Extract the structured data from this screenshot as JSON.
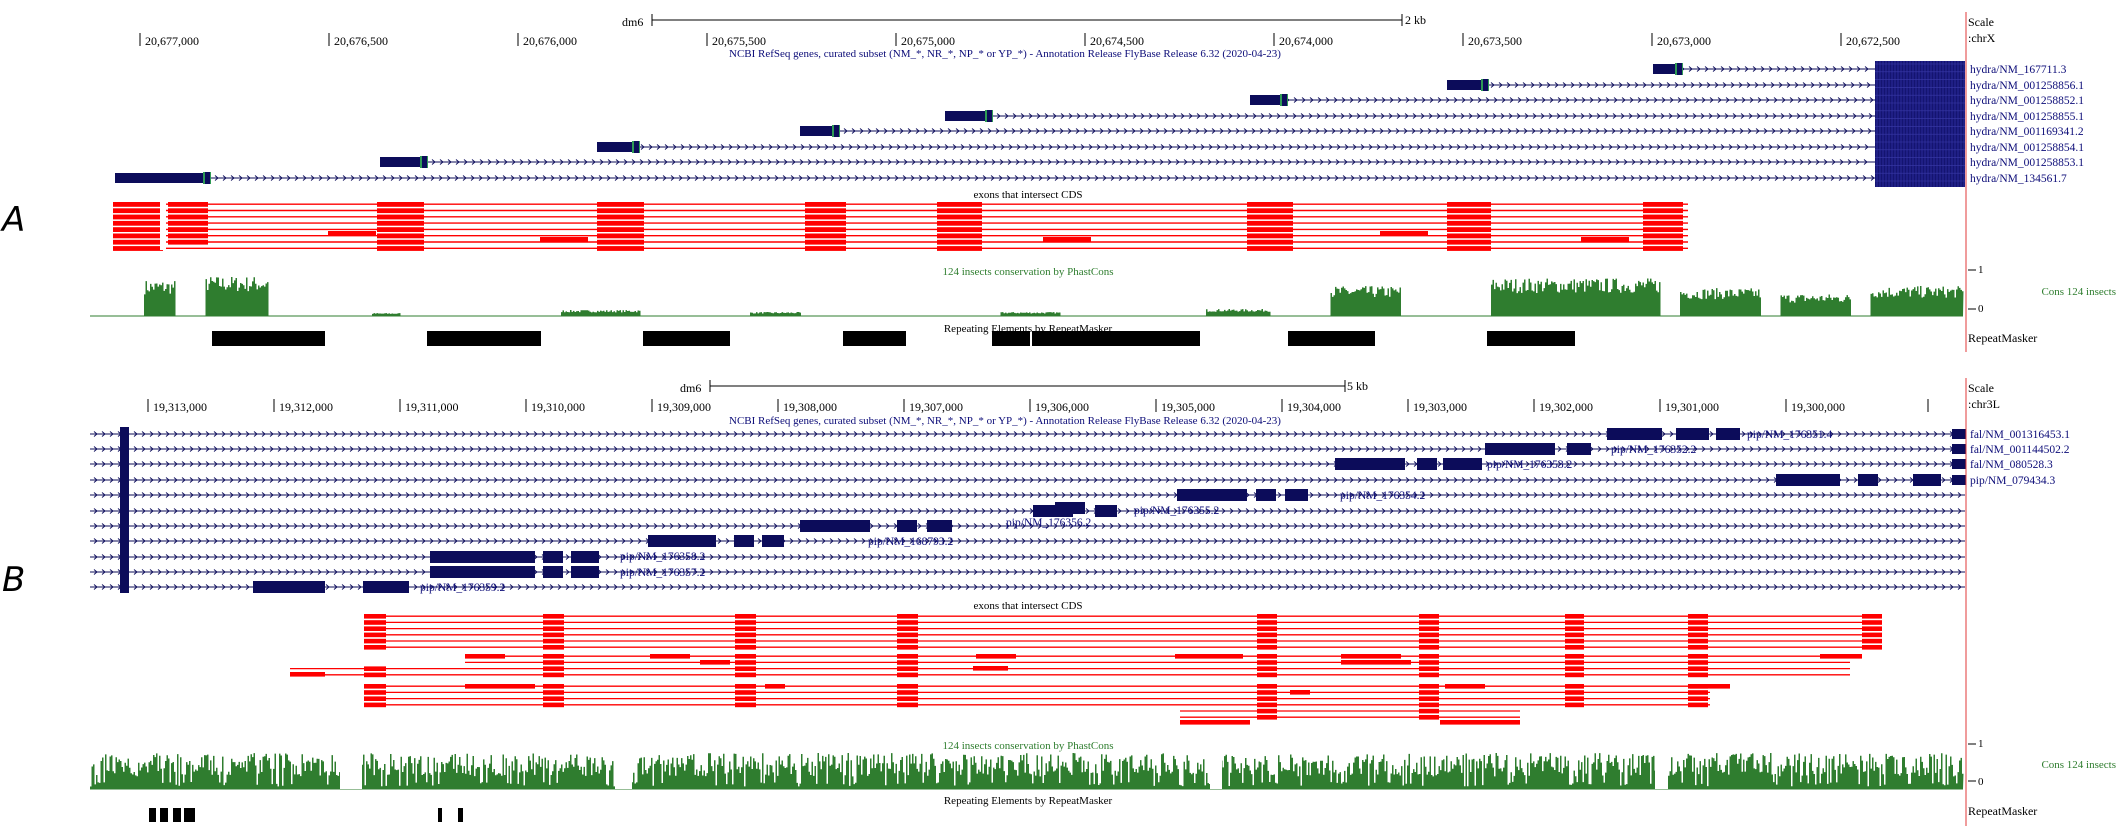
{
  "panels": [
    {
      "letter": "A",
      "assembly": "dm6",
      "scale_label": "2 kb",
      "scale_title": "Scale",
      "chrom": ":chrX",
      "coords": [
        "20,677,000",
        "20,676,500",
        "20,676,000",
        "20,675,500",
        "20,675,000",
        "20,674,500",
        "20,674,000",
        "20,673,500",
        "20,673,000",
        "20,672,500"
      ],
      "refseq_title": "NCBI RefSeq genes, curated subset (NM_*, NR_*, NP_* or YP_*) - Annotation Release FlyBase Release 6.32 (2020-04-23)",
      "transcripts": [
        "hydra/NM_167711.3",
        "hydra/NM_001258856.1",
        "hydra/NM_001258852.1",
        "hydra/NM_001258855.1",
        "hydra/NM_001169341.2",
        "hydra/NM_001258854.1",
        "hydra/NM_001258853.1",
        "hydra/NM_134561.7"
      ],
      "cds_title": "exons that intersect CDS",
      "cons_title": "124 insects conservation by PhastCons",
      "cons_label": "Cons 124 insects",
      "cons_max": "1",
      "cons_min": "0",
      "rmsk_title": "Repeating Elements by RepeatMasker",
      "rmsk_label": "RepeatMasker"
    },
    {
      "letter": "B",
      "assembly": "dm6",
      "scale_label": "5 kb",
      "scale_title": "Scale",
      "chrom": ":chr3L",
      "coords": [
        "19,313,000",
        "19,312,000",
        "19,311,000",
        "19,310,000",
        "19,309,000",
        "19,308,000",
        "19,307,000",
        "19,306,000",
        "19,305,000",
        "19,304,000",
        "19,303,000",
        "19,302,000",
        "19,301,000",
        "19,300,000"
      ],
      "refseq_title": "NCBI RefSeq genes, curated subset (NM_*, NR_*, NP_* or YP_*) - Annotation Release FlyBase Release 6.32 (2020-04-23)",
      "side_labels": [
        "fal/NM_001316453.1",
        "fal/NM_001144502.2",
        "fal/NM_080528.3",
        "pip/NM_079434.3"
      ],
      "inline_labels": [
        "pip/NM_176351.4",
        "pip/NM_176352.2",
        "pip/NM_176353.2",
        "pip/NM_176354.2",
        "pip/NM_176355.2",
        "pip/NM_176356.2",
        "pip/NM_168793.2",
        "pip/NM_176358.2",
        "pip/NM_176357.2",
        "pip/NM_176359.2"
      ],
      "cds_title": "exons that intersect CDS",
      "cons_title": "124 insects conservation by PhastCons",
      "cons_label": "Cons 124 insects",
      "cons_max": "1",
      "cons_min": "0",
      "rmsk_title": "Repeating Elements by RepeatMasker",
      "rmsk_label": "RepeatMasker"
    }
  ],
  "colors": {
    "gene": "#0c0c5a",
    "gene_label": "#0c0c78",
    "cds_exon": "#ff0000",
    "utr_green": "#2e9a55",
    "conservation": "#2f7d2f",
    "conservation_title": "#2e7d2e",
    "repeat": "#000000",
    "guide": "#e23a3a"
  }
}
